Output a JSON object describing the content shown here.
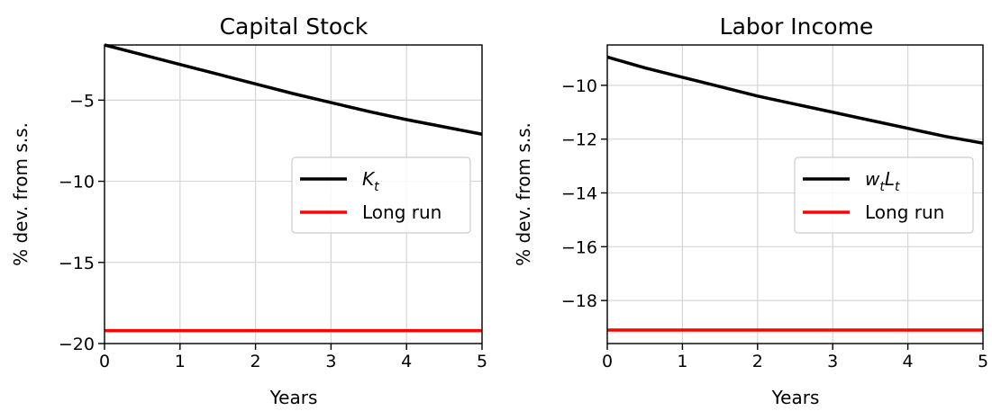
{
  "chart_data": [
    {
      "type": "line",
      "title": "Capital Stock",
      "xlabel": "Years",
      "ylabel": "% dev. from s.s.",
      "xlim": [
        0,
        5
      ],
      "ylim": [
        -20,
        -1.6
      ],
      "xticks": [
        0,
        1,
        2,
        3,
        4,
        5
      ],
      "yticks": [
        -5,
        -10,
        -15,
        -20
      ],
      "ytick_labels": [
        "−5",
        "−10",
        "−15",
        "−20"
      ],
      "grid": true,
      "legend_position": "center-right",
      "series": [
        {
          "name": "K",
          "name_subscript": "t",
          "color": "#000000",
          "x": [
            0,
            0.5,
            1,
            1.5,
            2,
            2.5,
            3,
            3.5,
            4,
            4.5,
            5
          ],
          "y": [
            -1.6,
            -2.2,
            -2.8,
            -3.4,
            -4.0,
            -4.6,
            -5.15,
            -5.7,
            -6.2,
            -6.65,
            -7.1
          ]
        },
        {
          "name": "Long run",
          "color": "#ff0000",
          "x": [
            0,
            5
          ],
          "y": [
            -19.2,
            -19.2
          ]
        }
      ]
    },
    {
      "type": "line",
      "title": "Labor Income",
      "xlabel": "Years",
      "ylabel": "% dev. from s.s.",
      "xlim": [
        0,
        5
      ],
      "ylim": [
        -19.6,
        -8.5
      ],
      "xticks": [
        0,
        1,
        2,
        3,
        4,
        5
      ],
      "yticks": [
        -10,
        -12,
        -14,
        -16,
        -18
      ],
      "ytick_labels": [
        "−10",
        "−12",
        "−14",
        "−16",
        "−18"
      ],
      "grid": true,
      "legend_position": "center-right",
      "series": [
        {
          "name": "wL",
          "name_parts": [
            {
              "base": "w",
              "sub": "t"
            },
            {
              "base": "L",
              "sub": "t"
            }
          ],
          "color": "#000000",
          "x": [
            0,
            0.5,
            1,
            1.5,
            2,
            2.5,
            3,
            3.5,
            4,
            4.5,
            5
          ],
          "y": [
            -8.95,
            -9.35,
            -9.7,
            -10.05,
            -10.4,
            -10.7,
            -11.0,
            -11.3,
            -11.6,
            -11.9,
            -12.15
          ]
        },
        {
          "name": "Long run",
          "color": "#ff0000",
          "x": [
            0,
            5
          ],
          "y": [
            -19.1,
            -19.1
          ]
        }
      ]
    }
  ]
}
